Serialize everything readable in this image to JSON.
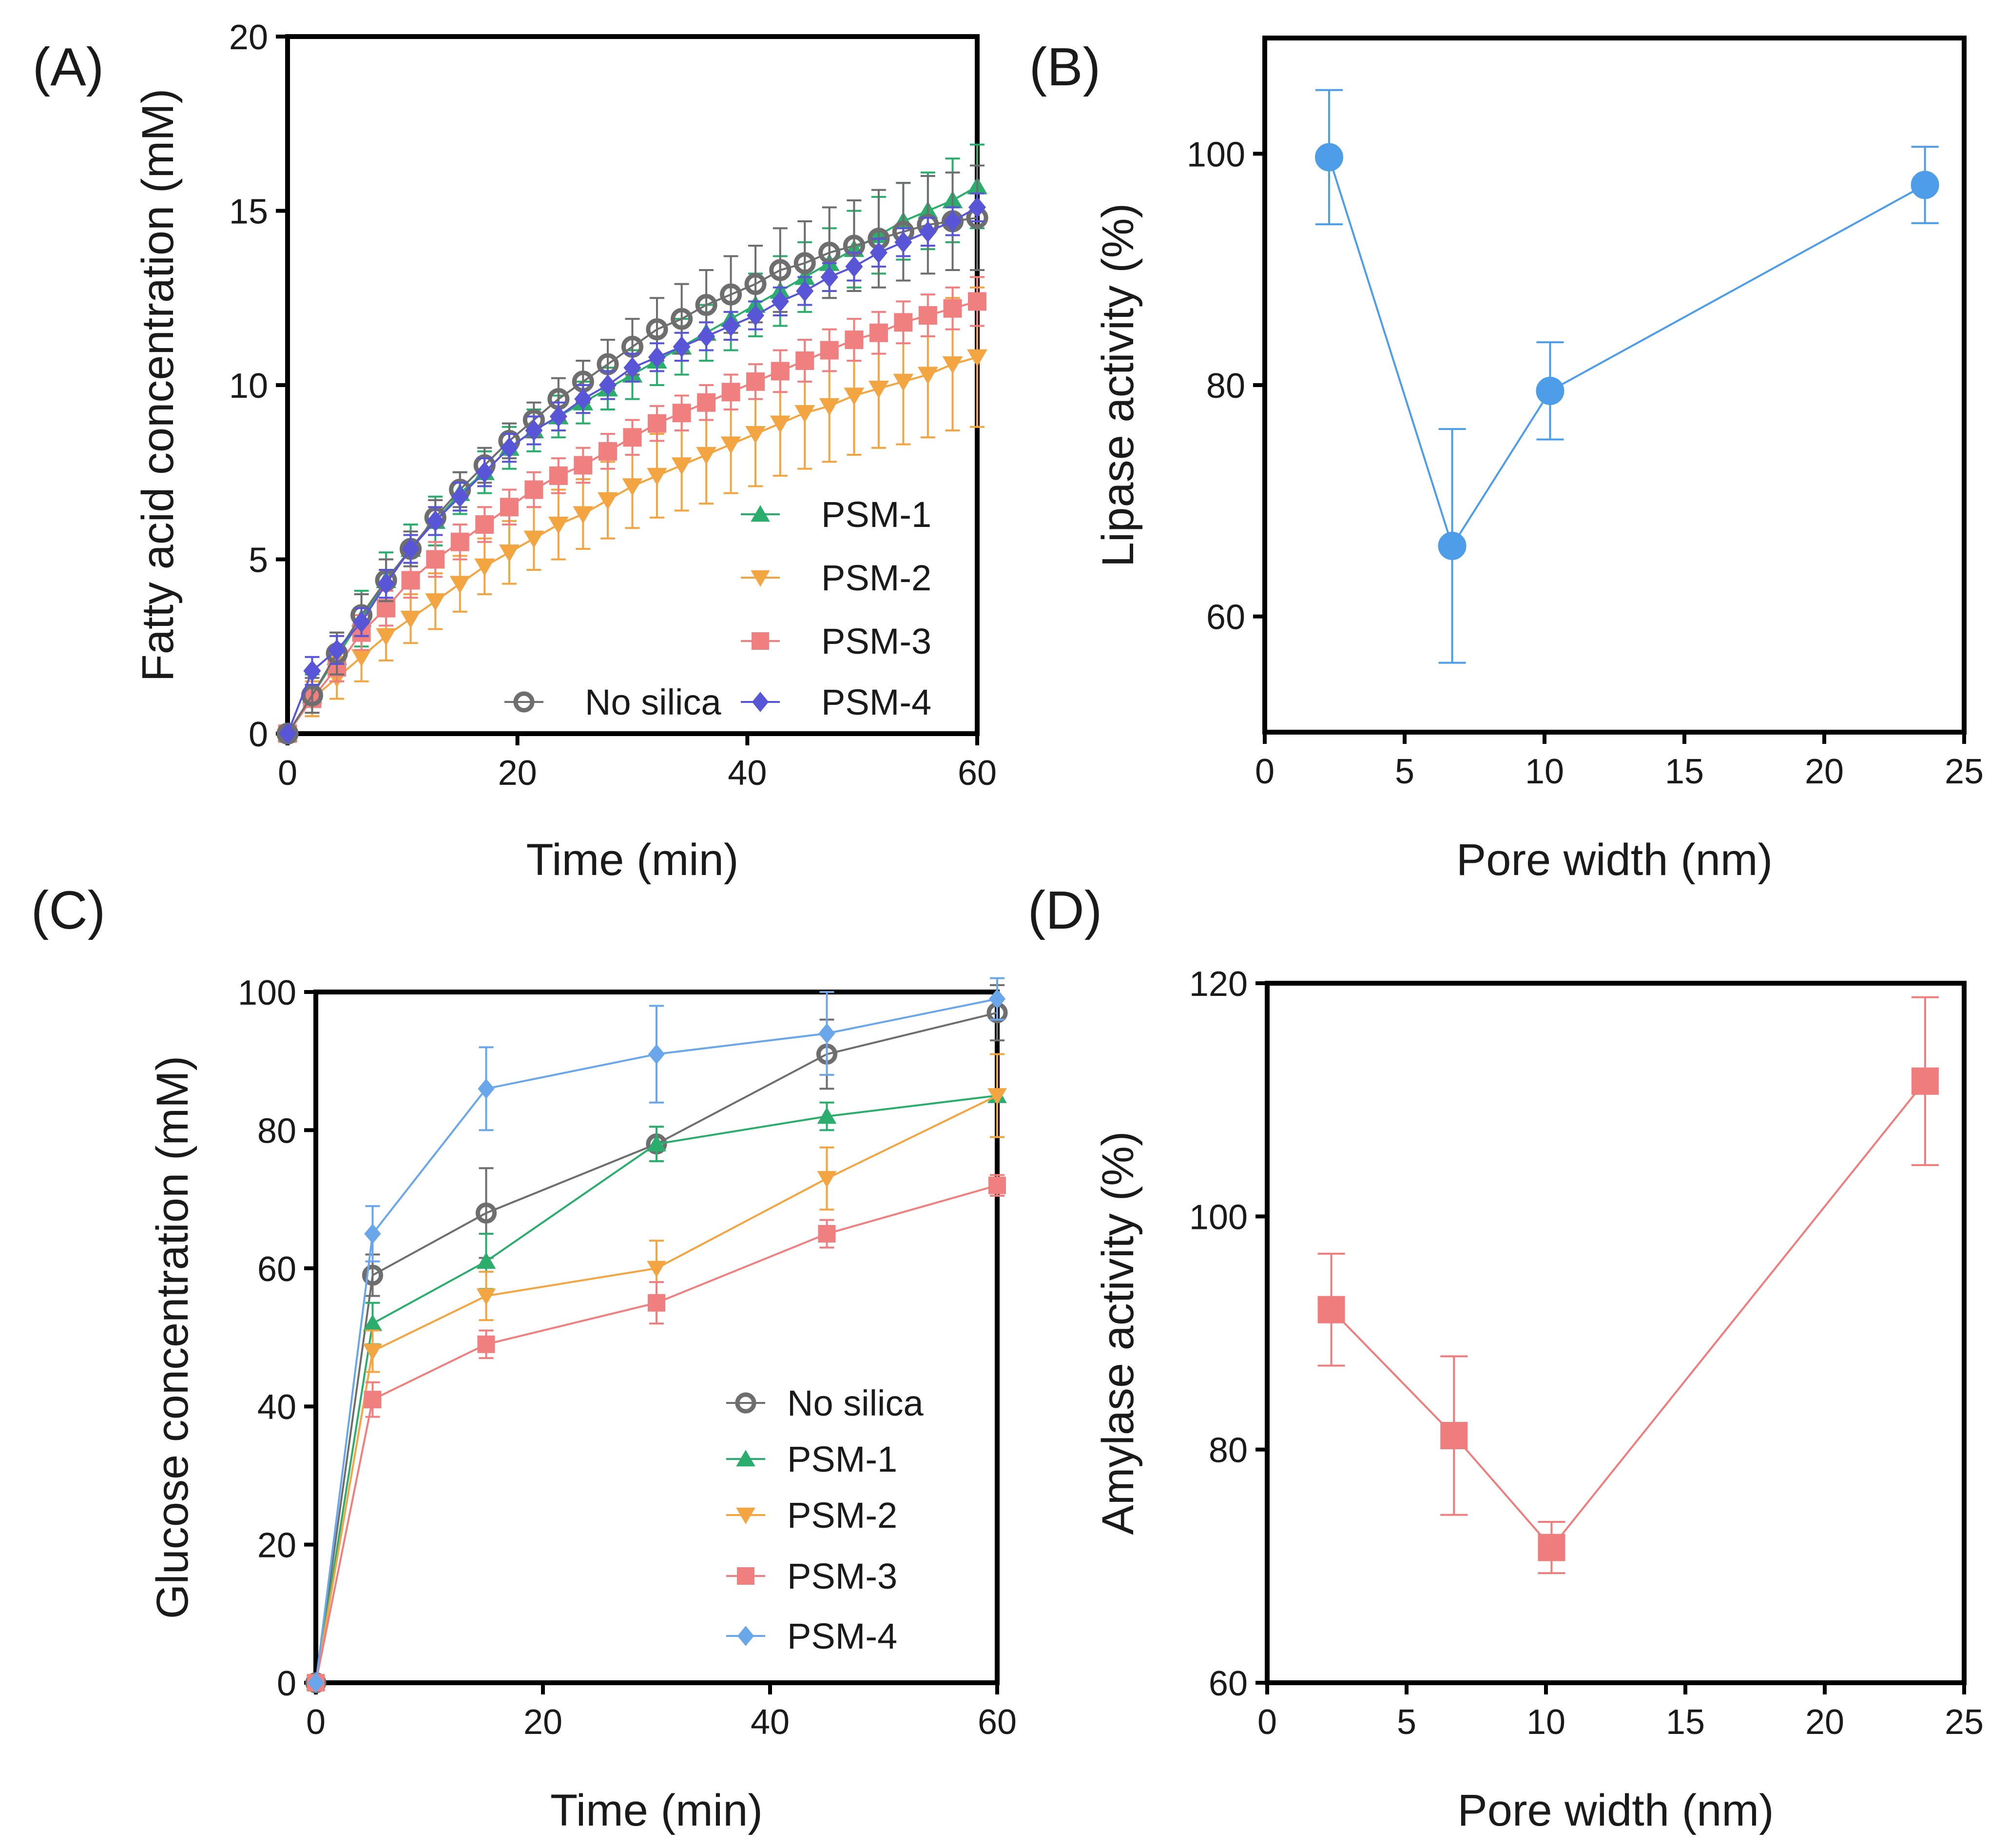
{
  "figure": {
    "panels": [
      "A",
      "B",
      "C",
      "D"
    ]
  },
  "colors": {
    "no_silica": "#6e6e6e",
    "psm1": "#2bae6d",
    "psm2": "#f2a541",
    "psm3": "#f07f7f",
    "psm4_A": "#5856d6",
    "psm4_C": "#6aa6ea",
    "lipase": "#4e9de8",
    "amylase": "#ef7d7d"
  },
  "chart_data": [
    {
      "panel": "A",
      "panel_label": "(A)",
      "type": "line",
      "xlabel": "Time (min)",
      "ylabel": "Fatty acid concentration (mM)",
      "xlim": [
        0,
        60
      ],
      "ylim": [
        0,
        20
      ],
      "xticks": [
        0,
        20,
        40,
        60
      ],
      "yticks": [
        0,
        5,
        10,
        15,
        20
      ],
      "grid": false,
      "legend": "bottom-right",
      "legend_layout": "two-column",
      "x": [
        0,
        2.14,
        4.29,
        6.43,
        8.57,
        10.71,
        12.86,
        15,
        17.14,
        19.29,
        21.43,
        23.57,
        25.71,
        27.86,
        30,
        32.14,
        34.29,
        36.43,
        38.57,
        40.71,
        42.86,
        45,
        47.14,
        49.29,
        51.43,
        53.57,
        55.71,
        57.86,
        60
      ],
      "series": [
        {
          "name": "PSM-1",
          "marker": "triangle-up",
          "color": "#2bae6d",
          "values": [
            0,
            1.1,
            2.2,
            3.3,
            4.4,
            5.3,
            6.1,
            6.9,
            7.5,
            8.2,
            8.7,
            9.1,
            9.5,
            9.9,
            10.3,
            10.7,
            11.1,
            11.5,
            11.9,
            12.3,
            12.7,
            13.1,
            13.5,
            13.9,
            14.3,
            14.7,
            15.0,
            15.3,
            15.7
          ],
          "errors": [
            0,
            0.6,
            0.7,
            0.8,
            0.8,
            0.7,
            0.7,
            0.6,
            0.6,
            0.6,
            0.6,
            0.6,
            0.6,
            0.6,
            0.7,
            0.7,
            0.8,
            0.8,
            0.9,
            0.9,
            1.0,
            1.0,
            1.0,
            1.1,
            1.1,
            1.1,
            1.1,
            1.2,
            1.2
          ]
        },
        {
          "name": "PSM-2",
          "marker": "triangle-down",
          "color": "#f2a541",
          "values": [
            0,
            1.0,
            1.6,
            2.2,
            2.8,
            3.3,
            3.8,
            4.3,
            4.8,
            5.2,
            5.6,
            6.0,
            6.3,
            6.7,
            7.1,
            7.4,
            7.7,
            8.0,
            8.3,
            8.6,
            8.9,
            9.2,
            9.4,
            9.7,
            9.9,
            10.1,
            10.3,
            10.6,
            10.8
          ],
          "errors": [
            0,
            0.5,
            0.6,
            0.7,
            0.7,
            0.7,
            0.8,
            0.8,
            0.8,
            0.9,
            0.9,
            1.0,
            1.0,
            1.1,
            1.2,
            1.2,
            1.3,
            1.4,
            1.4,
            1.5,
            1.5,
            1.6,
            1.6,
            1.7,
            1.7,
            1.8,
            1.8,
            1.9,
            2.0
          ]
        },
        {
          "name": "PSM-3",
          "marker": "square",
          "color": "#f07f7f",
          "values": [
            0,
            1.0,
            1.9,
            2.9,
            3.6,
            4.4,
            5.0,
            5.5,
            6.0,
            6.5,
            7.0,
            7.4,
            7.7,
            8.1,
            8.5,
            8.9,
            9.2,
            9.5,
            9.8,
            10.1,
            10.4,
            10.7,
            11.0,
            11.3,
            11.5,
            11.8,
            12.0,
            12.2,
            12.4
          ],
          "errors": [
            0,
            0.4,
            0.4,
            0.5,
            0.5,
            0.5,
            0.5,
            0.5,
            0.5,
            0.5,
            0.5,
            0.5,
            0.5,
            0.5,
            0.5,
            0.5,
            0.5,
            0.5,
            0.5,
            0.5,
            0.6,
            0.6,
            0.6,
            0.6,
            0.6,
            0.6,
            0.6,
            0.6,
            0.7
          ]
        },
        {
          "name": "No silica",
          "marker": "circle-open",
          "color": "#6e6e6e",
          "values": [
            0,
            1.1,
            2.3,
            3.4,
            4.4,
            5.3,
            6.2,
            7.0,
            7.7,
            8.4,
            9.0,
            9.6,
            10.1,
            10.6,
            11.1,
            11.6,
            11.9,
            12.3,
            12.6,
            12.9,
            13.3,
            13.5,
            13.8,
            14.0,
            14.2,
            14.4,
            14.6,
            14.7,
            14.8
          ],
          "errors": [
            0,
            0.5,
            0.6,
            0.6,
            0.6,
            0.5,
            0.5,
            0.5,
            0.5,
            0.5,
            0.5,
            0.6,
            0.6,
            0.7,
            0.8,
            0.9,
            1.0,
            1.0,
            1.1,
            1.1,
            1.2,
            1.2,
            1.3,
            1.3,
            1.4,
            1.4,
            1.4,
            1.4,
            1.5
          ]
        },
        {
          "name": "PSM-4",
          "marker": "diamond",
          "color": "#5856d6",
          "values": [
            0,
            1.8,
            2.4,
            3.2,
            4.3,
            5.3,
            6.1,
            6.8,
            7.5,
            8.2,
            8.7,
            9.1,
            9.6,
            10.0,
            10.5,
            10.8,
            11.1,
            11.4,
            11.7,
            12.0,
            12.4,
            12.7,
            13.1,
            13.4,
            13.8,
            14.1,
            14.4,
            14.7,
            15.1
          ],
          "errors": [
            0,
            0.4,
            0.4,
            0.4,
            0.4,
            0.4,
            0.4,
            0.4,
            0.4,
            0.4,
            0.4,
            0.4,
            0.4,
            0.4,
            0.4,
            0.4,
            0.4,
            0.4,
            0.4,
            0.4,
            0.4,
            0.4,
            0.4,
            0.4,
            0.4,
            0.4,
            0.4,
            0.4,
            0.4
          ]
        }
      ]
    },
    {
      "panel": "B",
      "panel_label": "(B)",
      "type": "line",
      "xlabel": "Pore width (nm)",
      "ylabel": "Lipase activity (%)",
      "xlim": [
        0,
        25
      ],
      "ylim": [
        50,
        110
      ],
      "xticks": [
        0,
        5,
        10,
        15,
        20,
        25
      ],
      "yticks": [
        60,
        80,
        100
      ],
      "grid": false,
      "legend": "none",
      "series": [
        {
          "name": "Lipase activity",
          "marker": "circle",
          "color": "#4e9de8",
          "x": [
            2.3,
            6.7,
            10.2,
            23.6
          ],
          "values": [
            99.7,
            66.1,
            79.5,
            97.3
          ],
          "errors": [
            5.8,
            10.1,
            4.2,
            3.3
          ]
        }
      ]
    },
    {
      "panel": "C",
      "panel_label": "(C)",
      "type": "line",
      "xlabel": "Time (min)",
      "ylabel": "Glucose concentration (mM)",
      "xlim": [
        0,
        60
      ],
      "ylim": [
        0,
        100
      ],
      "xticks": [
        0,
        20,
        40,
        60
      ],
      "yticks": [
        0,
        20,
        40,
        60,
        80,
        100
      ],
      "grid": false,
      "legend": "bottom-right",
      "legend_layout": "one-column",
      "x": [
        0,
        5,
        15,
        30,
        45,
        60
      ],
      "series": [
        {
          "name": "No silica",
          "marker": "circle-open",
          "color": "#6e6e6e",
          "values": [
            0,
            59,
            68,
            78,
            91,
            97
          ],
          "errors": [
            0,
            3,
            6.5,
            2.5,
            5,
            4
          ]
        },
        {
          "name": "PSM-1",
          "marker": "triangle-up",
          "color": "#2bae6d",
          "values": [
            0,
            52,
            61,
            78,
            82,
            85
          ],
          "errors": [
            0,
            3,
            4,
            2.5,
            2,
            6
          ]
        },
        {
          "name": "PSM-2",
          "marker": "triangle-down",
          "color": "#f2a541",
          "values": [
            0,
            48,
            56,
            60,
            73,
            85
          ],
          "errors": [
            0,
            3,
            3.5,
            4,
            4.5,
            6
          ]
        },
        {
          "name": "PSM-3",
          "marker": "square",
          "color": "#f07f7f",
          "values": [
            0,
            41,
            49,
            55,
            65,
            72
          ],
          "errors": [
            0,
            2.5,
            2,
            3,
            2,
            1.5
          ]
        },
        {
          "name": "PSM-4",
          "marker": "diamond",
          "color": "#6aa6ea",
          "values": [
            0,
            65,
            86,
            91,
            94,
            99
          ],
          "errors": [
            0,
            4,
            6,
            7,
            6,
            3
          ]
        }
      ]
    },
    {
      "panel": "D",
      "panel_label": "(D)",
      "type": "line",
      "xlabel": "Pore width (nm)",
      "ylabel": "Amylase activity (%)",
      "xlim": [
        0,
        25
      ],
      "ylim": [
        60,
        120
      ],
      "xticks": [
        0,
        5,
        10,
        15,
        20,
        25
      ],
      "yticks": [
        60,
        80,
        100,
        120
      ],
      "grid": false,
      "legend": "none",
      "series": [
        {
          "name": "Amylase activity",
          "marker": "square",
          "color": "#ef7d7d",
          "x": [
            2.3,
            6.7,
            10.2,
            23.6
          ],
          "values": [
            92,
            81.2,
            71.6,
            111.6
          ],
          "errors": [
            4.8,
            6.8,
            2.2,
            7.2
          ]
        }
      ]
    }
  ]
}
